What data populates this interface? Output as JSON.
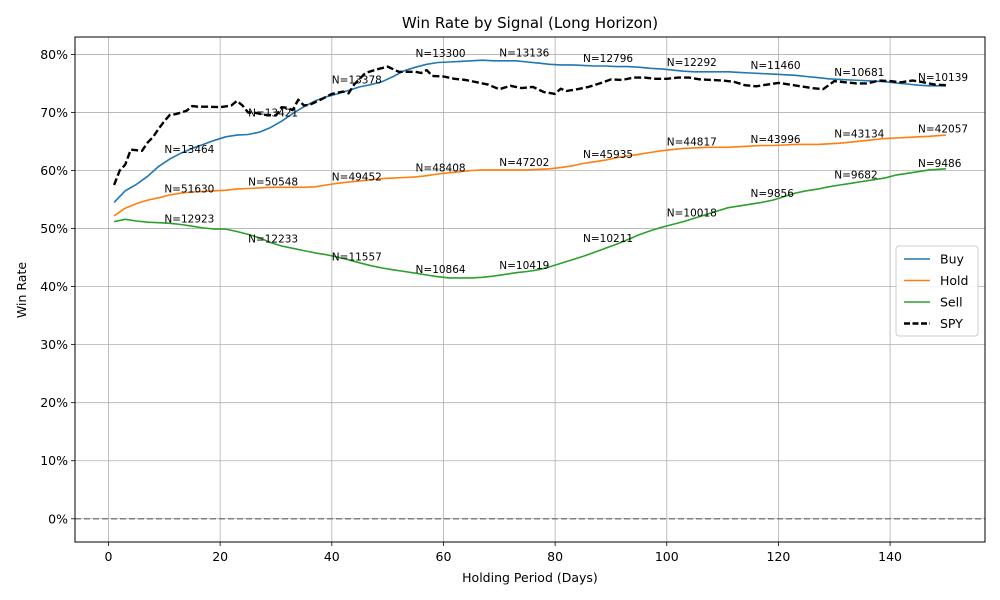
{
  "chart_data": {
    "type": "line",
    "title": "Win Rate by Signal (Long Horizon)",
    "xlabel": "Holding Period (Days)",
    "ylabel": "Win Rate",
    "xlim": [
      -6,
      157
    ],
    "ylim": [
      -0.04,
      0.83
    ],
    "xticks": [
      0,
      20,
      40,
      60,
      80,
      100,
      120,
      140
    ],
    "xtick_labels": [
      "0",
      "20",
      "40",
      "60",
      "80",
      "100",
      "120",
      "140"
    ],
    "yticks": [
      0,
      0.1,
      0.2,
      0.3,
      0.4,
      0.5,
      0.6,
      0.7,
      0.8
    ],
    "ytick_labels": [
      "0%",
      "10%",
      "20%",
      "30%",
      "40%",
      "50%",
      "60%",
      "70%",
      "80%"
    ],
    "grid": true,
    "legend_position": "center-right",
    "reference_line": {
      "y": 0,
      "color": "#808080",
      "style": "dashed"
    },
    "series": [
      {
        "name": "Buy",
        "color": "#1f77b4",
        "style": "solid",
        "x": [
          1,
          3,
          5,
          7,
          9,
          11,
          13,
          15,
          17,
          19,
          21,
          23,
          25,
          27,
          29,
          31,
          33,
          35,
          37,
          39,
          41,
          43,
          45,
          47,
          49,
          51,
          53,
          55,
          57,
          59,
          61,
          63,
          65,
          67,
          69,
          71,
          73,
          75,
          77,
          79,
          81,
          83,
          85,
          87,
          89,
          91,
          93,
          95,
          97,
          99,
          101,
          103,
          105,
          107,
          109,
          111,
          113,
          115,
          117,
          119,
          121,
          123,
          125,
          127,
          129,
          131,
          133,
          135,
          137,
          139,
          141,
          143,
          145,
          147,
          150
        ],
        "values": [
          0.545,
          0.565,
          0.576,
          0.59,
          0.607,
          0.62,
          0.63,
          0.638,
          0.645,
          0.652,
          0.658,
          0.661,
          0.662,
          0.666,
          0.674,
          0.685,
          0.698,
          0.71,
          0.72,
          0.727,
          0.732,
          0.738,
          0.744,
          0.748,
          0.753,
          0.762,
          0.772,
          0.778,
          0.783,
          0.786,
          0.787,
          0.788,
          0.789,
          0.79,
          0.789,
          0.789,
          0.789,
          0.787,
          0.785,
          0.783,
          0.782,
          0.782,
          0.781,
          0.78,
          0.78,
          0.779,
          0.779,
          0.778,
          0.776,
          0.775,
          0.773,
          0.771,
          0.77,
          0.77,
          0.77,
          0.77,
          0.769,
          0.768,
          0.767,
          0.766,
          0.765,
          0.764,
          0.762,
          0.76,
          0.758,
          0.757,
          0.756,
          0.755,
          0.754,
          0.753,
          0.751,
          0.749,
          0.747,
          0.746,
          0.746
        ],
        "labels": [
          {
            "x": 10,
            "y": 0.625,
            "text": "N=13464"
          },
          {
            "x": 25,
            "y": 0.688,
            "text": "N=13421"
          },
          {
            "x": 40,
            "y": 0.745,
            "text": "N=13378"
          },
          {
            "x": 55,
            "y": 0.79,
            "text": "N=13300"
          },
          {
            "x": 70,
            "y": 0.791,
            "text": "N=13136"
          },
          {
            "x": 85,
            "y": 0.782,
            "text": "N=12796"
          },
          {
            "x": 100,
            "y": 0.775,
            "text": "N=12292"
          },
          {
            "x": 115,
            "y": 0.77,
            "text": "N=11460"
          },
          {
            "x": 130,
            "y": 0.758,
            "text": "N=10681"
          },
          {
            "x": 145,
            "y": 0.749,
            "text": "N=10139"
          }
        ]
      },
      {
        "name": "Hold",
        "color": "#ff7f0e",
        "style": "solid",
        "x": [
          1,
          3,
          5,
          7,
          9,
          11,
          13,
          15,
          17,
          19,
          21,
          23,
          25,
          27,
          29,
          31,
          33,
          35,
          37,
          39,
          41,
          43,
          45,
          47,
          49,
          51,
          53,
          55,
          57,
          59,
          61,
          63,
          65,
          67,
          69,
          71,
          73,
          75,
          77,
          79,
          81,
          83,
          85,
          87,
          89,
          91,
          93,
          95,
          97,
          99,
          101,
          103,
          105,
          107,
          109,
          111,
          113,
          115,
          117,
          119,
          121,
          123,
          125,
          127,
          129,
          131,
          133,
          135,
          137,
          139,
          141,
          143,
          145,
          147,
          150
        ],
        "values": [
          0.522,
          0.535,
          0.543,
          0.549,
          0.553,
          0.558,
          0.561,
          0.563,
          0.564,
          0.565,
          0.566,
          0.568,
          0.569,
          0.57,
          0.571,
          0.571,
          0.571,
          0.571,
          0.572,
          0.575,
          0.578,
          0.58,
          0.582,
          0.584,
          0.586,
          0.587,
          0.588,
          0.589,
          0.591,
          0.594,
          0.596,
          0.598,
          0.6,
          0.601,
          0.601,
          0.601,
          0.601,
          0.601,
          0.602,
          0.603,
          0.605,
          0.608,
          0.612,
          0.615,
          0.618,
          0.622,
          0.625,
          0.628,
          0.631,
          0.634,
          0.636,
          0.638,
          0.639,
          0.64,
          0.64,
          0.64,
          0.641,
          0.642,
          0.643,
          0.643,
          0.644,
          0.645,
          0.645,
          0.645,
          0.646,
          0.647,
          0.649,
          0.651,
          0.653,
          0.655,
          0.656,
          0.657,
          0.658,
          0.659,
          0.661
        ],
        "labels": [
          {
            "x": 10,
            "y": 0.557,
            "text": "N=51630"
          },
          {
            "x": 25,
            "y": 0.569,
            "text": "N=50548"
          },
          {
            "x": 40,
            "y": 0.578,
            "text": "N=49452"
          },
          {
            "x": 55,
            "y": 0.593,
            "text": "N=48408"
          },
          {
            "x": 70,
            "y": 0.603,
            "text": "N=47202"
          },
          {
            "x": 85,
            "y": 0.616,
            "text": "N=45935"
          },
          {
            "x": 100,
            "y": 0.638,
            "text": "N=44817"
          },
          {
            "x": 115,
            "y": 0.642,
            "text": "N=43996"
          },
          {
            "x": 130,
            "y": 0.652,
            "text": "N=43134"
          },
          {
            "x": 145,
            "y": 0.66,
            "text": "N=42057"
          }
        ]
      },
      {
        "name": "Sell",
        "color": "#2ca02c",
        "style": "solid",
        "x": [
          1,
          3,
          5,
          7,
          9,
          11,
          13,
          15,
          17,
          19,
          21,
          23,
          25,
          27,
          29,
          31,
          33,
          35,
          37,
          39,
          41,
          43,
          45,
          47,
          49,
          51,
          53,
          55,
          57,
          59,
          61,
          63,
          65,
          67,
          69,
          71,
          73,
          75,
          77,
          79,
          81,
          83,
          85,
          87,
          89,
          91,
          93,
          95,
          97,
          99,
          101,
          103,
          105,
          107,
          109,
          111,
          113,
          115,
          117,
          119,
          121,
          123,
          125,
          127,
          129,
          131,
          133,
          135,
          137,
          139,
          141,
          143,
          145,
          147,
          150
        ],
        "values": [
          0.512,
          0.516,
          0.513,
          0.511,
          0.51,
          0.509,
          0.507,
          0.504,
          0.501,
          0.499,
          0.499,
          0.495,
          0.49,
          0.484,
          0.476,
          0.47,
          0.466,
          0.462,
          0.458,
          0.455,
          0.451,
          0.446,
          0.441,
          0.436,
          0.432,
          0.429,
          0.426,
          0.423,
          0.42,
          0.417,
          0.415,
          0.415,
          0.415,
          0.416,
          0.418,
          0.421,
          0.424,
          0.426,
          0.429,
          0.434,
          0.44,
          0.446,
          0.452,
          0.459,
          0.466,
          0.473,
          0.481,
          0.489,
          0.496,
          0.502,
          0.507,
          0.512,
          0.518,
          0.524,
          0.53,
          0.536,
          0.539,
          0.542,
          0.545,
          0.549,
          0.555,
          0.561,
          0.565,
          0.568,
          0.572,
          0.575,
          0.578,
          0.581,
          0.584,
          0.587,
          0.592,
          0.595,
          0.598,
          0.601,
          0.603
        ],
        "labels": [
          {
            "x": 10,
            "y": 0.505,
            "text": "N=12923"
          },
          {
            "x": 25,
            "y": 0.471,
            "text": "N=12233"
          },
          {
            "x": 40,
            "y": 0.44,
            "text": "N=11557"
          },
          {
            "x": 55,
            "y": 0.418,
            "text": "N=10864"
          },
          {
            "x": 70,
            "y": 0.425,
            "text": "N=10419"
          },
          {
            "x": 85,
            "y": 0.472,
            "text": "N=10211"
          },
          {
            "x": 100,
            "y": 0.516,
            "text": "N=10018"
          },
          {
            "x": 115,
            "y": 0.549,
            "text": "N=9856"
          },
          {
            "x": 130,
            "y": 0.581,
            "text": "N=9682"
          },
          {
            "x": 145,
            "y": 0.601,
            "text": "N=9486"
          }
        ]
      },
      {
        "name": "SPY",
        "color": "#000000",
        "style": "dashed",
        "x": [
          1,
          2,
          3,
          4,
          5,
          6,
          7,
          8,
          9,
          10,
          11,
          12,
          13,
          14,
          15,
          16,
          18,
          20,
          22,
          23,
          24,
          25,
          26,
          28,
          30,
          31,
          32,
          33,
          34,
          35,
          36,
          38,
          40,
          42,
          43,
          44,
          46,
          48,
          50,
          52,
          55,
          56,
          57,
          58,
          60,
          62,
          64,
          66,
          68,
          70,
          72,
          74,
          76,
          78,
          80,
          81,
          82,
          84,
          86,
          88,
          90,
          92,
          94,
          96,
          98,
          100,
          102,
          104,
          106,
          108,
          110,
          112,
          114,
          116,
          118,
          120,
          122,
          124,
          126,
          128,
          130,
          132,
          134,
          136,
          138,
          140,
          142,
          144,
          146,
          148,
          150
        ],
        "values": [
          0.575,
          0.6,
          0.61,
          0.636,
          0.635,
          0.634,
          0.648,
          0.658,
          0.672,
          0.685,
          0.696,
          0.697,
          0.7,
          0.703,
          0.711,
          0.71,
          0.71,
          0.709,
          0.712,
          0.72,
          0.712,
          0.7,
          0.7,
          0.696,
          0.695,
          0.709,
          0.708,
          0.704,
          0.722,
          0.712,
          0.713,
          0.722,
          0.732,
          0.736,
          0.733,
          0.748,
          0.768,
          0.774,
          0.779,
          0.77,
          0.77,
          0.768,
          0.773,
          0.763,
          0.762,
          0.758,
          0.756,
          0.752,
          0.748,
          0.74,
          0.746,
          0.742,
          0.744,
          0.735,
          0.732,
          0.741,
          0.737,
          0.74,
          0.744,
          0.75,
          0.757,
          0.756,
          0.76,
          0.76,
          0.758,
          0.758,
          0.76,
          0.76,
          0.757,
          0.756,
          0.755,
          0.753,
          0.747,
          0.745,
          0.748,
          0.751,
          0.748,
          0.745,
          0.742,
          0.74,
          0.754,
          0.752,
          0.75,
          0.75,
          0.755,
          0.754,
          0.752,
          0.755,
          0.752,
          0.748,
          0.747
        ]
      }
    ]
  }
}
